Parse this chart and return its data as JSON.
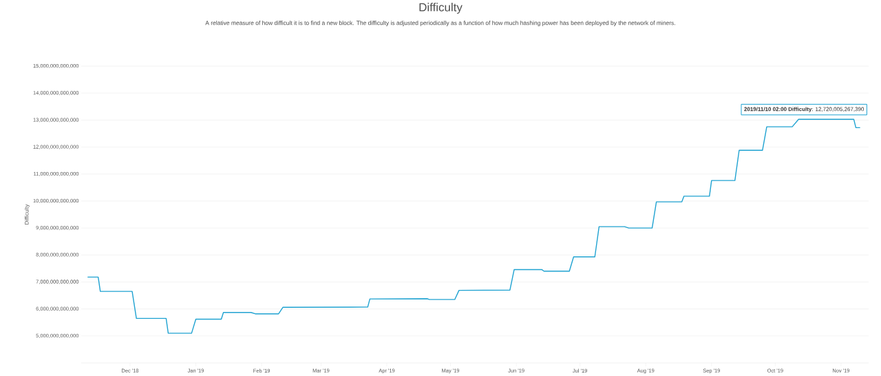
{
  "chart_data": {
    "type": "line",
    "title": "Difficulty",
    "subtitle": "A relative measure of how difficult it is to find a new block. The difficulty is adjusted periodically as a function of how much hashing power has been deployed by the network of miners.",
    "ylabel": "Difficulty",
    "x": [
      "2018-11-11",
      "2018-11-16",
      "2018-11-17",
      "2018-12-02",
      "2018-12-04",
      "2018-12-18",
      "2018-12-19",
      "2018-12-30",
      "2019-01-01",
      "2019-01-13",
      "2019-01-14",
      "2019-01-27",
      "2019-01-29",
      "2019-02-09",
      "2019-02-11",
      "2019-03-23",
      "2019-03-24",
      "2019-04-20",
      "2019-04-21",
      "2019-05-03",
      "2019-05-05",
      "2019-05-29",
      "2019-05-31",
      "2019-06-13",
      "2019-06-14",
      "2019-06-26",
      "2019-06-28",
      "2019-07-08",
      "2019-07-10",
      "2019-07-22",
      "2019-07-24",
      "2019-08-04",
      "2019-08-06",
      "2019-08-18",
      "2019-08-19",
      "2019-08-31",
      "2019-09-01",
      "2019-09-12",
      "2019-09-14",
      "2019-09-25",
      "2019-09-27",
      "2019-10-09",
      "2019-10-12",
      "2019-11-07",
      "2019-11-08",
      "2019-11-10"
    ],
    "series": [
      {
        "color": "#1fa2d1",
        "values": [
          7180000000000,
          7180000000000,
          6650000000000,
          6650000000000,
          5650000000000,
          5650000000000,
          5100000000000,
          5100000000000,
          5620000000000,
          5620000000000,
          5870000000000,
          5870000000000,
          5820000000000,
          5820000000000,
          6060000000000,
          6070000000000,
          6370000000000,
          6380000000000,
          6350000000000,
          6350000000000,
          6690000000000,
          6700000000000,
          7460000000000,
          7460000000000,
          7400000000000,
          7400000000000,
          7930000000000,
          7930000000000,
          9050000000000,
          9050000000000,
          9000000000000,
          9000000000000,
          9970000000000,
          9970000000000,
          10180000000000,
          10180000000000,
          10760000000000,
          10760000000000,
          11880000000000,
          11880000000000,
          12750000000000,
          12750000000000,
          13030000000000,
          13030000000000,
          12720000000000,
          12720000000000
        ]
      }
    ],
    "xlim": [
      "2018-11-08",
      "2019-11-14"
    ],
    "xticks": [
      {
        "value": "2018-12-01",
        "label": "Dec '18"
      },
      {
        "value": "2019-01-01",
        "label": "Jan '19"
      },
      {
        "value": "2019-02-01",
        "label": "Feb '19"
      },
      {
        "value": "2019-03-01",
        "label": "Mar '19"
      },
      {
        "value": "2019-04-01",
        "label": "Apr '19"
      },
      {
        "value": "2019-05-01",
        "label": "May '19"
      },
      {
        "value": "2019-06-01",
        "label": "Jun '19"
      },
      {
        "value": "2019-07-01",
        "label": "Jul '19"
      },
      {
        "value": "2019-08-01",
        "label": "Aug '19"
      },
      {
        "value": "2019-09-01",
        "label": "Sep '19"
      },
      {
        "value": "2019-10-01",
        "label": "Oct '19"
      },
      {
        "value": "2019-11-01",
        "label": "Nov '19"
      }
    ],
    "ylim": [
      4000000000000,
      15000000000000
    ],
    "yticks": [
      {
        "value": 5000000000000,
        "label": "5,000,000,000,000"
      },
      {
        "value": 6000000000000,
        "label": "6,000,000,000,000"
      },
      {
        "value": 7000000000000,
        "label": "7,000,000,000,000"
      },
      {
        "value": 8000000000000,
        "label": "8,000,000,000,000"
      },
      {
        "value": 9000000000000,
        "label": "9,000,000,000,000"
      },
      {
        "value": 10000000000000,
        "label": "10,000,000,000,000"
      },
      {
        "value": 11000000000000,
        "label": "11,000,000,000,000"
      },
      {
        "value": 12000000000000,
        "label": "12,000,000,000,000"
      },
      {
        "value": 13000000000000,
        "label": "13,000,000,000,000"
      },
      {
        "value": 14000000000000,
        "label": "14,000,000,000,000"
      },
      {
        "value": 15000000000000,
        "label": "15,000,000,000,000"
      }
    ],
    "grid": "y",
    "marker": "none",
    "line_style": "solid",
    "annotations": [
      {
        "text": "**2019/11/10 02:00** **Difficulty**: 12,720,005,267,390",
        "x": "2019-11-10T02:00",
        "y": 12720005267390
      }
    ]
  }
}
